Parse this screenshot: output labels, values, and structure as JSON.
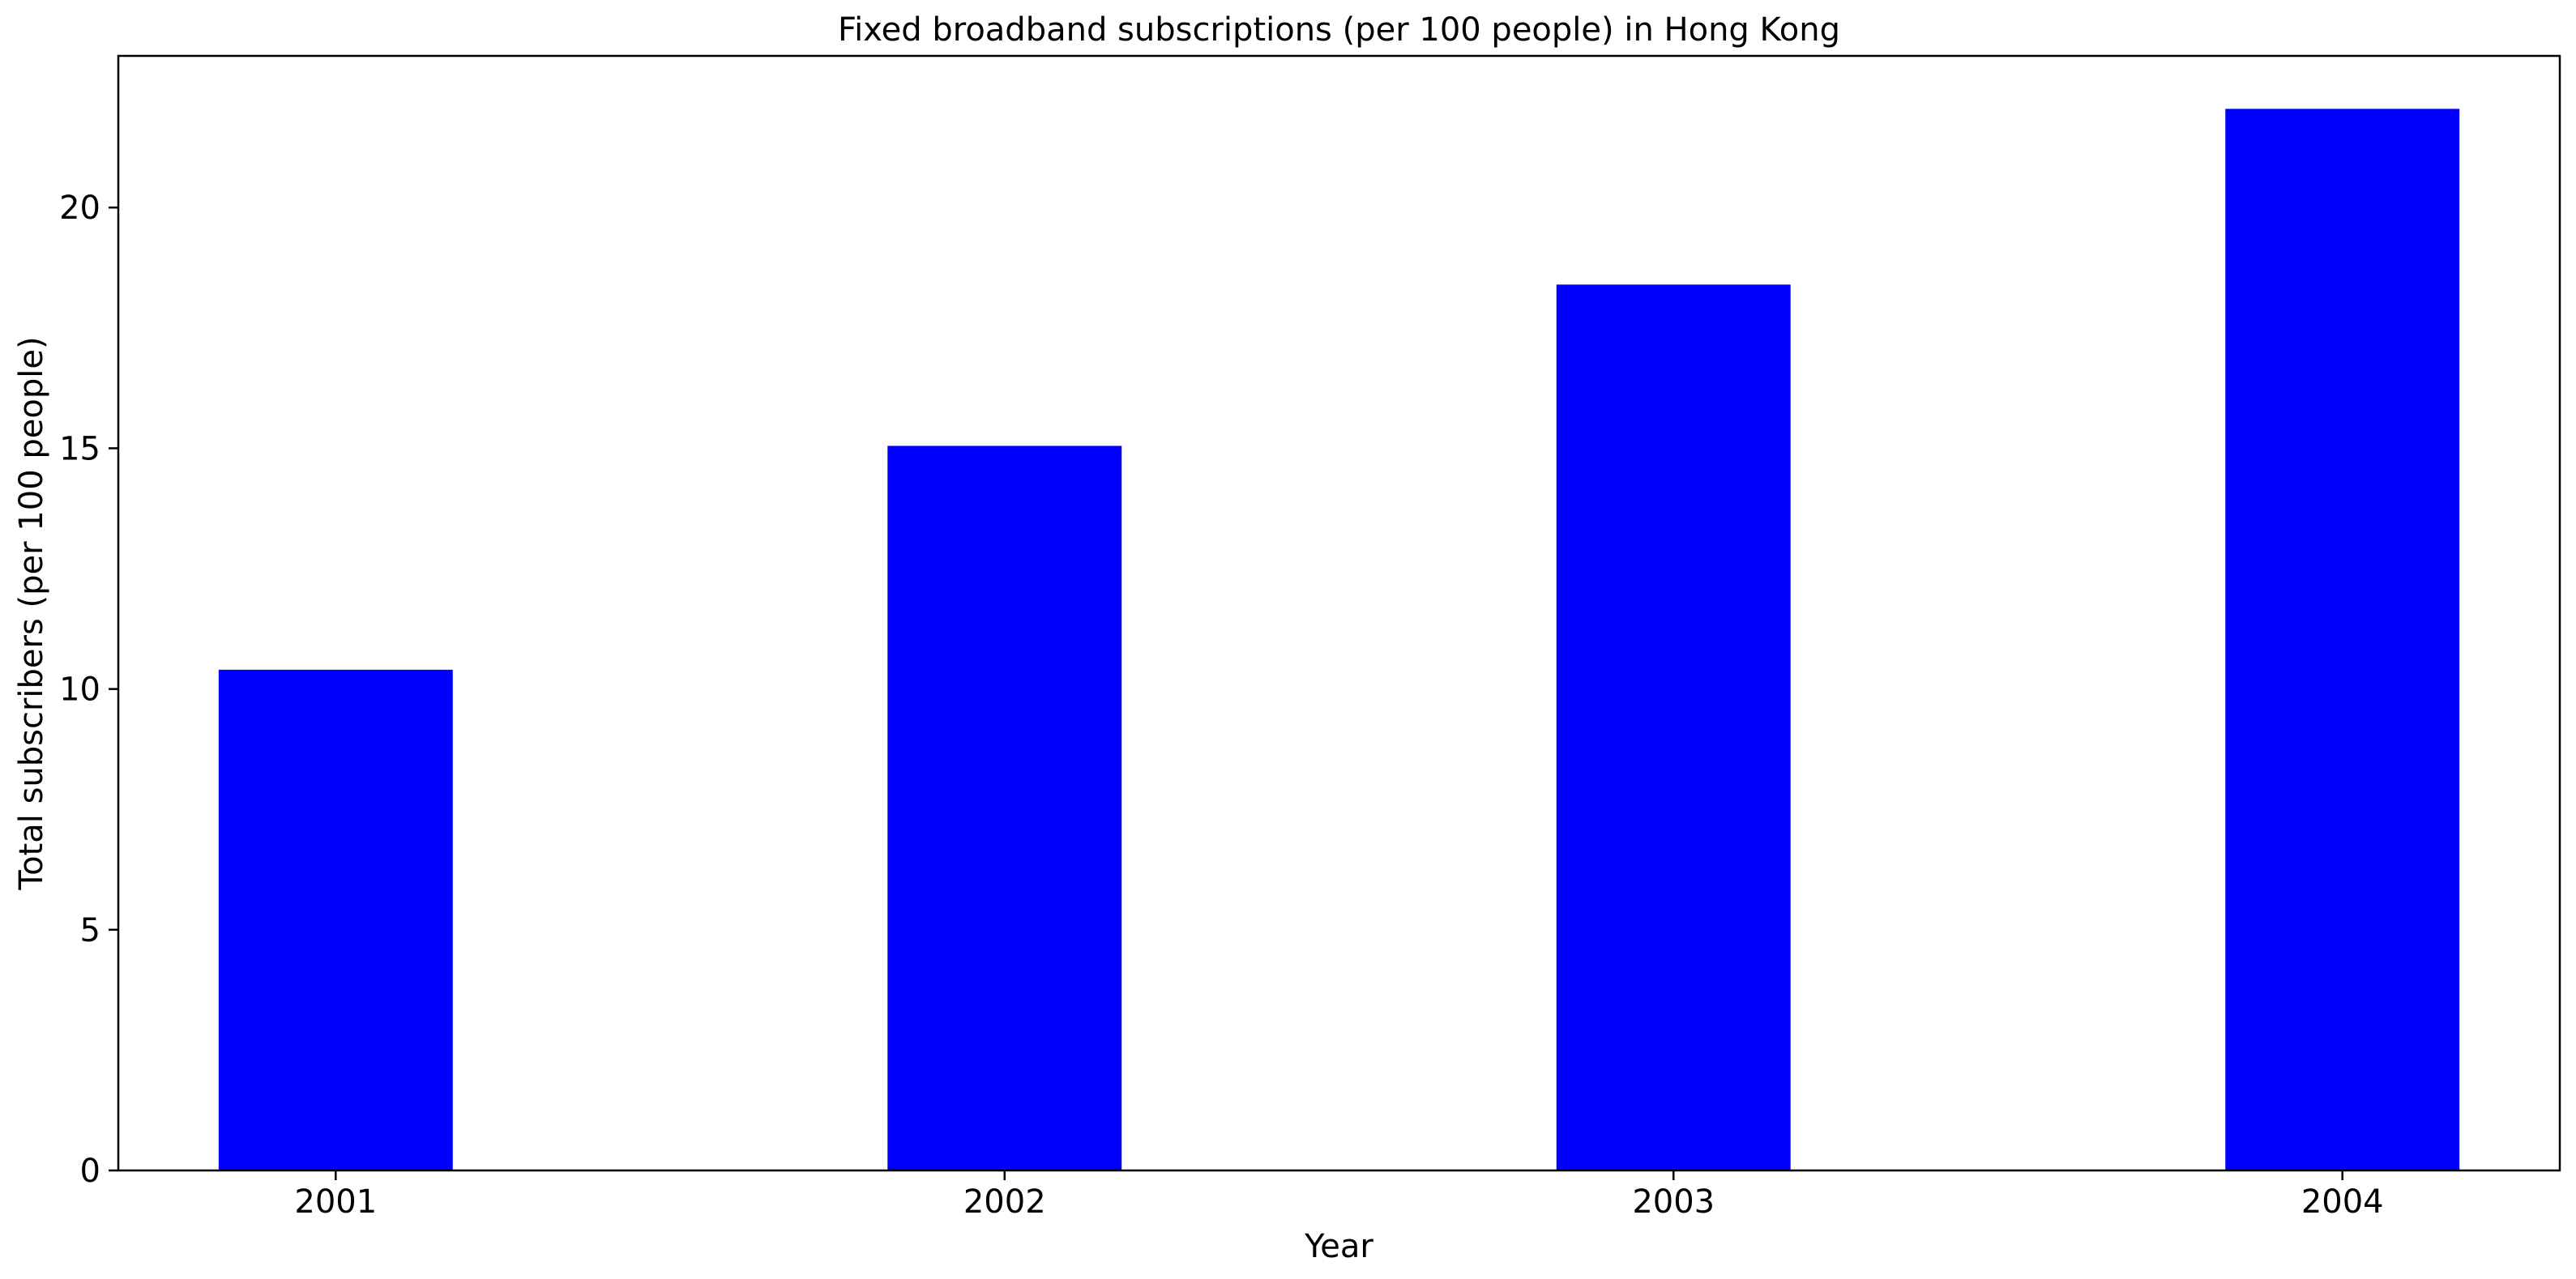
{
  "chart_data": {
    "type": "bar",
    "title": "Fixed broadband subscriptions (per 100 people) in Hong Kong",
    "xlabel": "Year",
    "ylabel": "Total subscribers (per 100 people)",
    "categories": [
      "2001",
      "2002",
      "2003",
      "2004"
    ],
    "values": [
      10.4,
      15.05,
      18.4,
      22.05
    ],
    "ylim": [
      0,
      23.15
    ],
    "yticks": [
      0,
      5,
      10,
      15,
      20
    ],
    "grid": false,
    "legend": "none",
    "bar_color": "#0000ff"
  }
}
